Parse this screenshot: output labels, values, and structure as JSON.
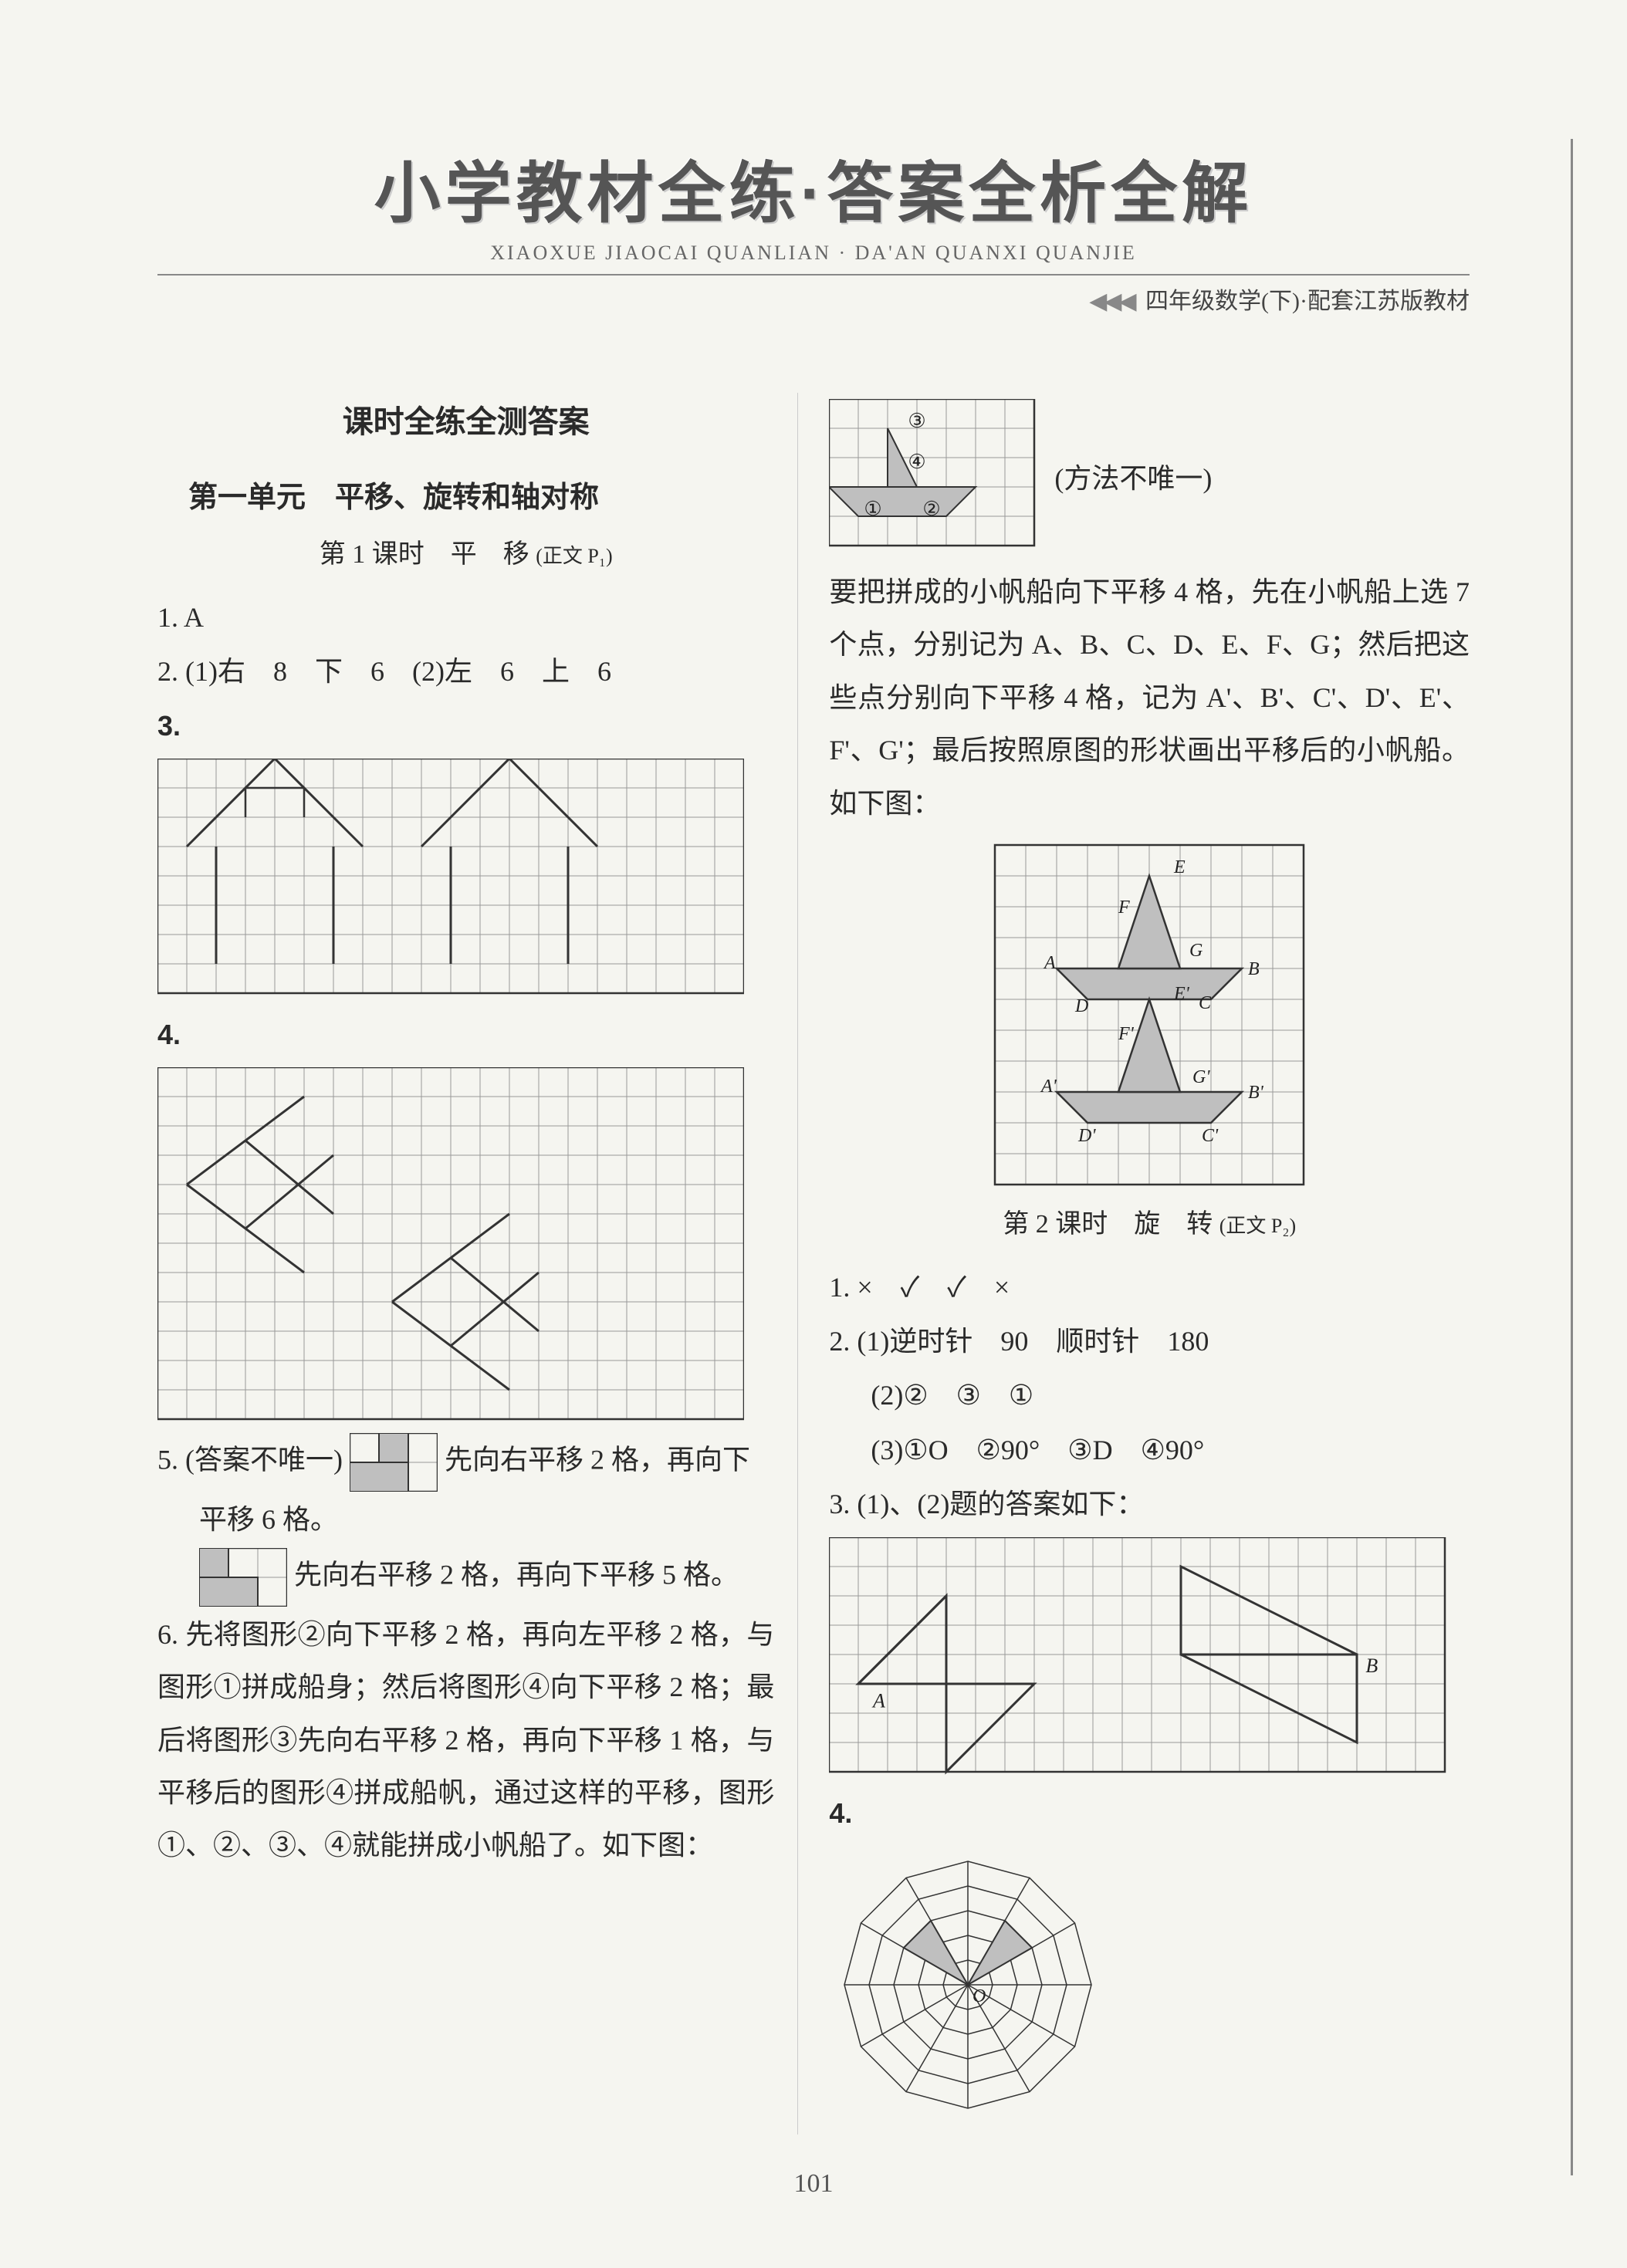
{
  "header": {
    "main_title": "小学教材全练·答案全析全解",
    "pinyin": "XIAOXUE JIAOCAI QUANLIAN · DA'AN QUANXI QUANJIE",
    "arrows": "◀◀◀",
    "sub_right": "四年级数学(下)·配套江苏版教材"
  },
  "page_number": "101",
  "left": {
    "section_title": "课时全练全测答案",
    "unit_title": "第一单元　平移、旋转和轴对称",
    "lesson1_title": "第 1 课时　平　移",
    "lesson1_note": "(正文 P₁)",
    "q1": "1. A",
    "q2": "2. (1)右　8　下　6　(2)左　6　上　6",
    "q3_label": "3.",
    "q4_label": "4.",
    "q5_prefix": "5. (答案不唯一)",
    "q5_part1": "先向右平移 2 格，再向下",
    "q5_part2": "平移 6 格。",
    "q5_part3": "先向右平移 2 格，再向下平移 5 格。",
    "q6": "6. 先将图形②向下平移 2 格，再向左平移 2 格，与图形①拼成船身；然后将图形④向下平移 2 格；最后将图形③先向右平移 2 格，再向下平移 1 格，与平移后的图形④拼成船帆，通过这样的平移，图形①、②、③、④就能拼成小帆船了。如下图："
  },
  "right": {
    "note1": "(方法不唯一)",
    "para1": "要把拼成的小帆船向下平移 4 格，先在小帆船上选 7 个点，分别记为 A、B、C、D、E、F、G；然后把这些点分别向下平移 4 格，记为 A'、B'、C'、D'、E'、F'、G'；最后按照原图的形状画出平移后的小帆船。如下图：",
    "boat_labels": {
      "E": "E",
      "F": "F",
      "A": "A",
      "G": "G",
      "B": "B",
      "D": "D",
      "Ep": "E'",
      "C": "C",
      "Fp": "F'",
      "Ap": "A'",
      "Gp": "G'",
      "Bp": "B'",
      "Dp": "D'",
      "Cp": "C'"
    },
    "lesson2_title": "第 2 课时　旋　转",
    "lesson2_note": "(正文 P₂)",
    "q1": "1. ×　✓　✓　×",
    "q2_1": "2. (1)逆时针　90　顺时针　180",
    "q2_2": "(2)②　③　①",
    "q2_3": "(3)①O　②90°　③D　④90°",
    "q3": "3. (1)、(2)题的答案如下：",
    "q3_labels": {
      "A": "A",
      "B": "B"
    },
    "q4_label": "4."
  },
  "grids": {
    "cell": 38,
    "stroke": "#333333",
    "thin": "#999999",
    "fill_gray": "#bfbfbf",
    "chart3": {
      "cols": 20,
      "rows": 8
    },
    "chart4": {
      "cols": 20,
      "rows": 12
    },
    "small5a": {
      "cols": 3,
      "rows": 2
    },
    "small5b": {
      "cols": 3,
      "rows": 2
    },
    "boat_top": {
      "cols": 7,
      "rows": 5
    },
    "boat_main": {
      "cols": 10,
      "rows": 11
    },
    "chart_r3": {
      "cols": 21,
      "rows": 8
    },
    "web": {
      "rings": 5,
      "spokes": 12
    }
  }
}
